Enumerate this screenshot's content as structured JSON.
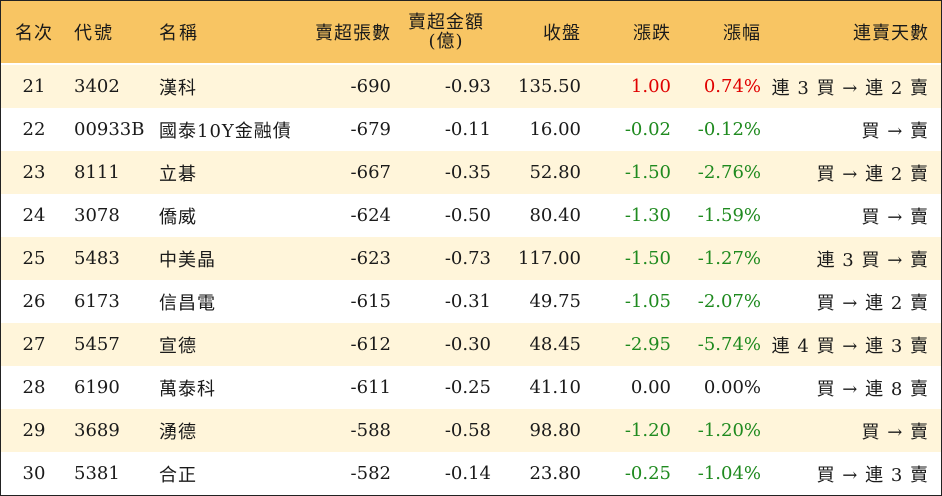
{
  "header": {
    "rank": "名次",
    "code": "代號",
    "name": "名稱",
    "sell_volume": "賣超張數",
    "sell_amount_line1": "賣超金額",
    "sell_amount_line2": "(億)",
    "close": "收盤",
    "change": "漲跌",
    "change_pct": "漲幅",
    "streak": "連賣天數"
  },
  "colors": {
    "header_bg": "#f8c563",
    "stripe_bg": "#fff5da",
    "up": "#e00000",
    "down": "#1f8a1f"
  },
  "rows": [
    {
      "rank": "21",
      "code": "3402",
      "name": "漢科",
      "sell_volume": "-690",
      "sell_amount": "-0.93",
      "close": "135.50",
      "change": "1.00",
      "change_pct": "0.74%",
      "streak": "連 3 買 → 連 2 賣",
      "trend": "up"
    },
    {
      "rank": "22",
      "code": "00933B",
      "name": "國泰10Y金融債",
      "sell_volume": "-679",
      "sell_amount": "-0.11",
      "close": "16.00",
      "change": "-0.02",
      "change_pct": "-0.12%",
      "streak": "買 → 賣",
      "trend": "down"
    },
    {
      "rank": "23",
      "code": "8111",
      "name": "立碁",
      "sell_volume": "-667",
      "sell_amount": "-0.35",
      "close": "52.80",
      "change": "-1.50",
      "change_pct": "-2.76%",
      "streak": "買 → 連 2 賣",
      "trend": "down"
    },
    {
      "rank": "24",
      "code": "3078",
      "name": "僑威",
      "sell_volume": "-624",
      "sell_amount": "-0.50",
      "close": "80.40",
      "change": "-1.30",
      "change_pct": "-1.59%",
      "streak": "買 → 賣",
      "trend": "down"
    },
    {
      "rank": "25",
      "code": "5483",
      "name": "中美晶",
      "sell_volume": "-623",
      "sell_amount": "-0.73",
      "close": "117.00",
      "change": "-1.50",
      "change_pct": "-1.27%",
      "streak": "連 3 買 → 賣",
      "trend": "down"
    },
    {
      "rank": "26",
      "code": "6173",
      "name": "信昌電",
      "sell_volume": "-615",
      "sell_amount": "-0.31",
      "close": "49.75",
      "change": "-1.05",
      "change_pct": "-2.07%",
      "streak": "買 → 連 2 賣",
      "trend": "down"
    },
    {
      "rank": "27",
      "code": "5457",
      "name": "宣德",
      "sell_volume": "-612",
      "sell_amount": "-0.30",
      "close": "48.45",
      "change": "-2.95",
      "change_pct": "-5.74%",
      "streak": "連 4 買 → 連 3 賣",
      "trend": "down"
    },
    {
      "rank": "28",
      "code": "6190",
      "name": "萬泰科",
      "sell_volume": "-611",
      "sell_amount": "-0.25",
      "close": "41.10",
      "change": "0.00",
      "change_pct": "0.00%",
      "streak": "買 → 連 8 賣",
      "trend": "flat"
    },
    {
      "rank": "29",
      "code": "3689",
      "name": "湧德",
      "sell_volume": "-588",
      "sell_amount": "-0.58",
      "close": "98.80",
      "change": "-1.20",
      "change_pct": "-1.20%",
      "streak": "買 → 賣",
      "trend": "down"
    },
    {
      "rank": "30",
      "code": "5381",
      "name": "合正",
      "sell_volume": "-582",
      "sell_amount": "-0.14",
      "close": "23.80",
      "change": "-0.25",
      "change_pct": "-1.04%",
      "streak": "買 → 連 3 賣",
      "trend": "down"
    }
  ]
}
